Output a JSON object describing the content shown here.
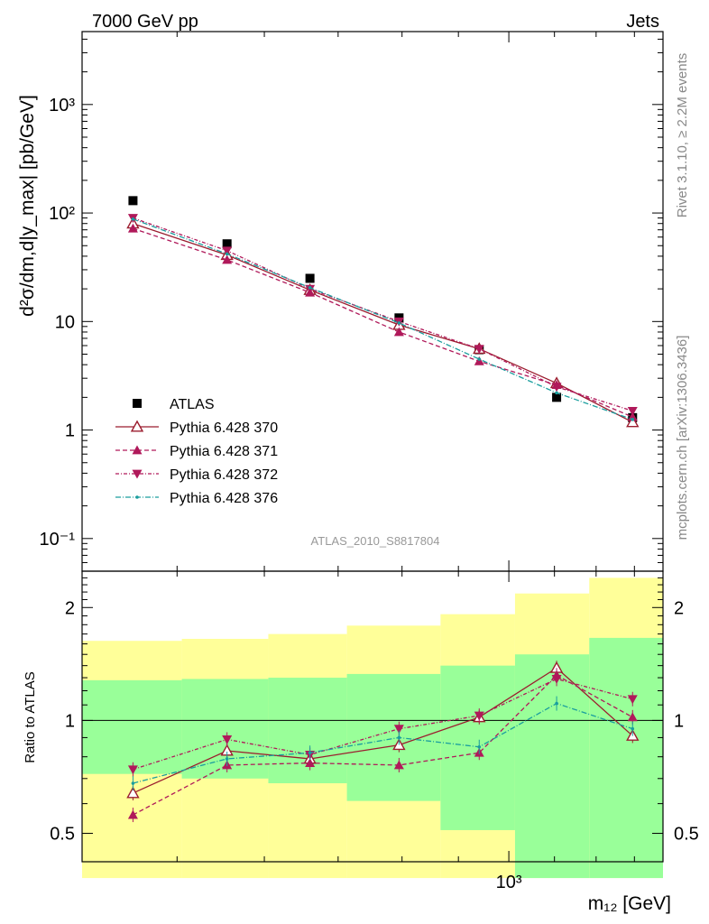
{
  "header": {
    "left": "7000 GeV pp",
    "right": "Jets"
  },
  "side_text": {
    "upper": "Rivet 3.1.10, ≥ 2.2M events",
    "lower": "mcplots.cern.ch [arXiv:1306.3436]"
  },
  "analysis_id": "ATLAS_2010_S8817804",
  "colors": {
    "atlas": "#000000",
    "p370": "#9b1c2e",
    "p371": "#b0195a",
    "p372": "#b0195a",
    "p376": "#1a9e9e",
    "band_outer": "#ffff99",
    "band_inner": "#99ff99"
  },
  "chart_data": [
    {
      "type": "scatter",
      "panel": "main",
      "ylabel": "d²σ/dm,d|y_max| [pb/GeV]",
      "yscale": "log",
      "ylim": [
        0.05,
        4700
      ],
      "ytick_labels": [
        "10⁻¹",
        "1",
        "10",
        "10²",
        "10³"
      ],
      "x": [
        456,
        555,
        660,
        795,
        940,
        1105,
        1295
      ],
      "series": [
        {
          "name": "ATLAS",
          "values": [
            130,
            52,
            25,
            10.8,
            5.5,
            2.0,
            1.3
          ]
        },
        {
          "name": "Pythia 6.428 370",
          "values": [
            80,
            41,
            19.5,
            9.3,
            5.6,
            2.7,
            1.18
          ]
        },
        {
          "name": "Pythia 6.428 371",
          "values": [
            72,
            37,
            18.5,
            8.0,
            4.3,
            2.6,
            1.32
          ]
        },
        {
          "name": "Pythia 6.428 372",
          "values": [
            90,
            45,
            20,
            10.0,
            5.6,
            2.5,
            1.5
          ]
        },
        {
          "name": "Pythia 6.428 376",
          "values": [
            88,
            42,
            20.5,
            9.7,
            4.5,
            2.2,
            1.25
          ]
        }
      ]
    },
    {
      "type": "scatter",
      "panel": "ratio",
      "ylabel": "Ratio to ATLAS",
      "yscale": "log",
      "ylim": [
        0.42,
        2.5
      ],
      "ytick_labels": [
        "0.5",
        "1",
        "2"
      ],
      "xlabel": "m₁₂ [GeV]",
      "xscale": "log",
      "xlim": [
        410,
        1380
      ],
      "xtick_labels": [
        "10³"
      ],
      "x": [
        456,
        555,
        660,
        795,
        940,
        1105,
        1295
      ],
      "series": [
        {
          "name": "Pythia 6.428 370",
          "values": [
            0.64,
            0.83,
            0.79,
            0.86,
            1.02,
            1.38,
            0.91
          ]
        },
        {
          "name": "Pythia 6.428 371",
          "values": [
            0.56,
            0.76,
            0.77,
            0.76,
            0.82,
            1.32,
            1.02
          ]
        },
        {
          "name": "Pythia 6.428 372",
          "values": [
            0.74,
            0.89,
            0.81,
            0.95,
            1.03,
            1.29,
            1.14
          ]
        },
        {
          "name": "Pythia 6.428 376",
          "values": [
            0.68,
            0.79,
            0.82,
            0.9,
            0.85,
            1.11,
            0.95
          ]
        }
      ],
      "band_edges": [
        410,
        505,
        605,
        713,
        867,
        1013,
        1183,
        1380
      ],
      "band_inner": [
        [
          0.72,
          1.28
        ],
        [
          0.7,
          1.29
        ],
        [
          0.68,
          1.3
        ],
        [
          0.61,
          1.33
        ],
        [
          0.51,
          1.4
        ],
        [
          0.38,
          1.5
        ],
        [
          0.38,
          1.66
        ]
      ],
      "band_outer": [
        [
          0.38,
          1.63
        ],
        [
          0.38,
          1.65
        ],
        [
          0.38,
          1.7
        ],
        [
          0.38,
          1.79
        ],
        [
          0.38,
          1.92
        ],
        [
          0.38,
          2.18
        ],
        [
          0.38,
          2.4
        ]
      ]
    }
  ]
}
